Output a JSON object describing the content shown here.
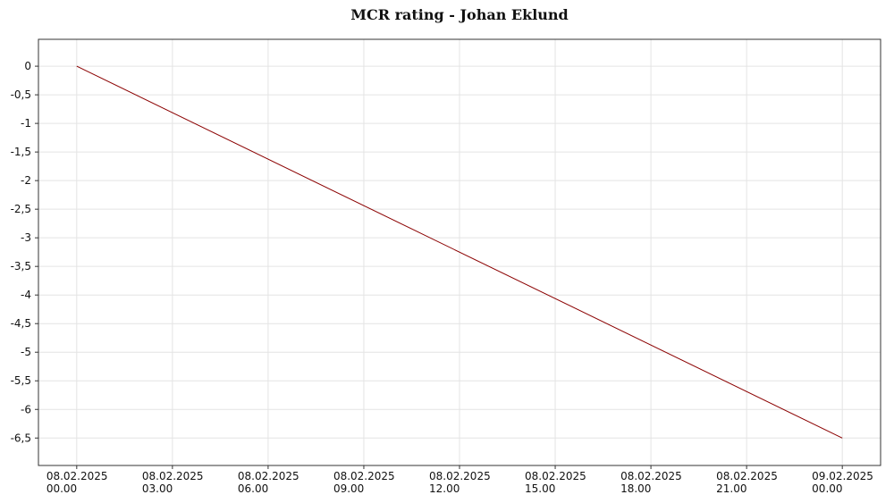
{
  "chart_data": {
    "type": "line",
    "title": "MCR rating - Johan Eklund",
    "x": [
      "2025-02-08T00:00",
      "2025-02-09T00:00"
    ],
    "series": [
      {
        "name": "MCR rating",
        "color": "#8b0000",
        "values": [
          0,
          -6.5
        ]
      }
    ],
    "xlim": [
      "2025-02-07T22:48",
      "2025-02-09T01:12"
    ],
    "xticks": [
      {
        "value": "2025-02-08T00:00",
        "label": "08.02.2025\n00.00"
      },
      {
        "value": "2025-02-08T03:00",
        "label": "08.02.2025\n03.00"
      },
      {
        "value": "2025-02-08T06:00",
        "label": "08.02.2025\n06.00"
      },
      {
        "value": "2025-02-08T09:00",
        "label": "08.02.2025\n09.00"
      },
      {
        "value": "2025-02-08T12:00",
        "label": "08.02.2025\n12.00"
      },
      {
        "value": "2025-02-08T15:00",
        "label": "08.02.2025\n15.00"
      },
      {
        "value": "2025-02-08T18:00",
        "label": "08.02.2025\n18.00"
      },
      {
        "value": "2025-02-08T21:00",
        "label": "08.02.2025\n21.00"
      },
      {
        "value": "2025-02-09T00:00",
        "label": "09.02.2025\n00.00"
      }
    ],
    "ylim": [
      -6.98,
      0.47
    ],
    "yticks": [
      0,
      {
        "value": -0.5,
        "label": "-0,5"
      },
      -1,
      {
        "value": -1.5,
        "label": "-1,5"
      },
      -2,
      {
        "value": -2.5,
        "label": "-2,5"
      },
      -3,
      {
        "value": -3.5,
        "label": "-3,5"
      },
      -4,
      {
        "value": -4.5,
        "label": "-4,5"
      },
      -5,
      {
        "value": -5.5,
        "label": "-5,5"
      },
      -6,
      {
        "value": -6.5,
        "label": "-6,5"
      }
    ],
    "grid": true
  }
}
